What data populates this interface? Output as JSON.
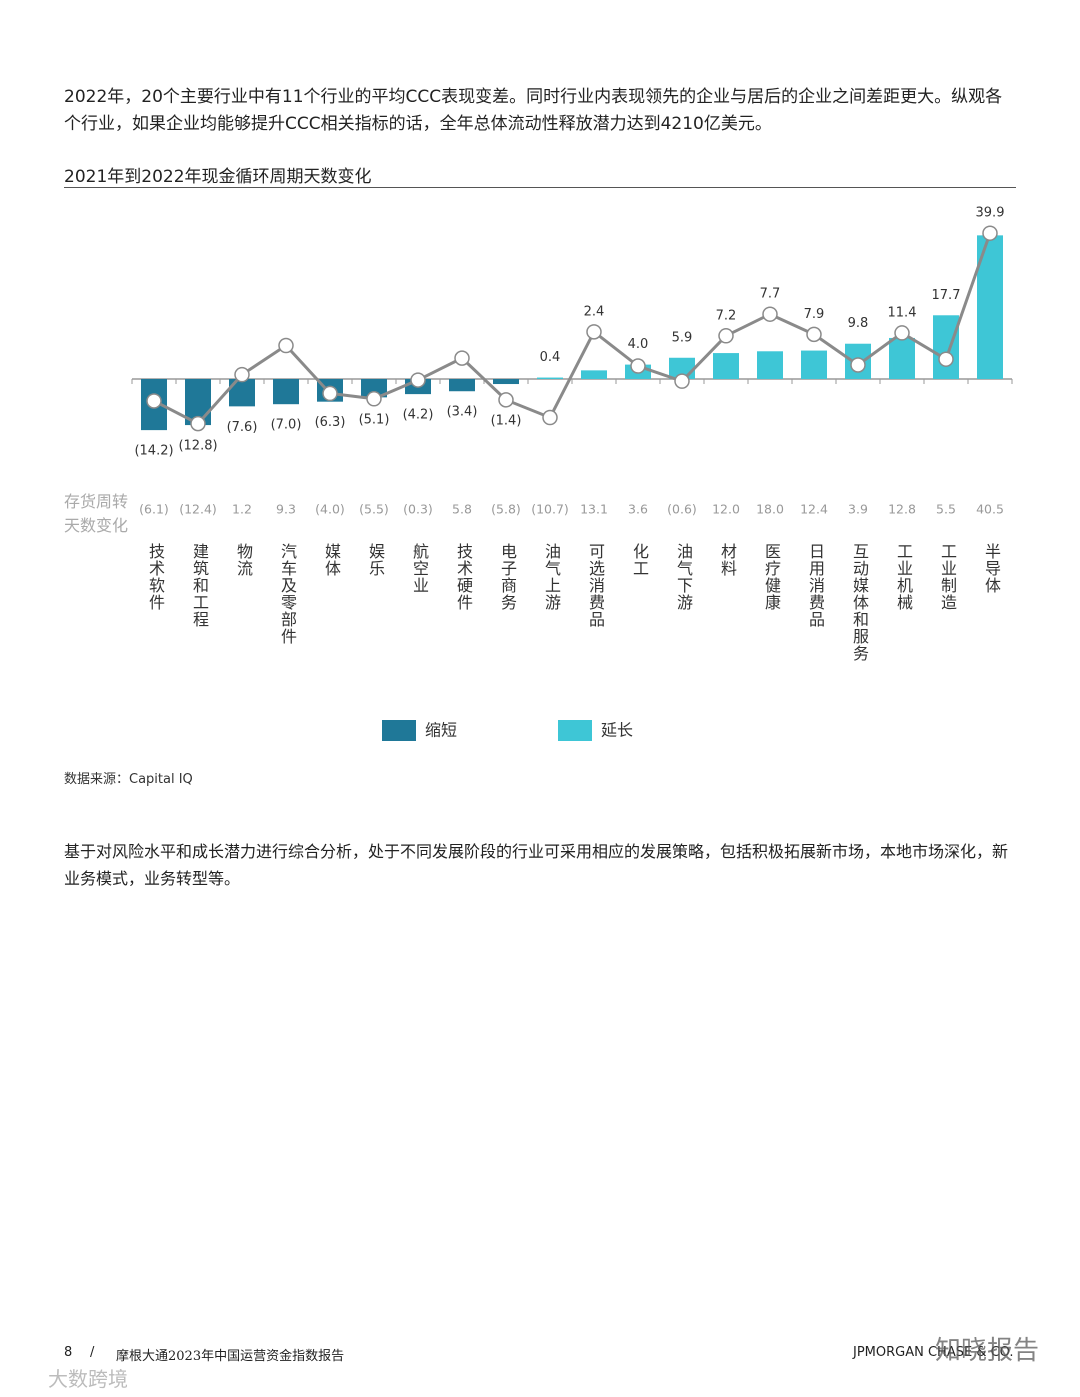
{
  "body": {
    "paragraph1": "2022年，20个主要行业中有11个行业的平均CCC表现变差。同时行业内表现领先的企业与居后的企业之间差距更大。纵观各个行业，如果企业均能够提升CCC相关指标的话，全年总体流动性释放潜力达到4210亿美元。",
    "source": "数据来源：Capital IQ",
    "paragraph2": "基于对风险水平和成长潜力进行综合分析，处于不同发展阶段的行业可采用相应的发展策略，包括积极拓展新市场，本地市场深化，新业务模式，业务转型等。"
  },
  "chart_data": {
    "type": "bar",
    "title": "2021年到2022年现金循环周期天数变化",
    "categories": [
      "技术软件",
      "建筑和工程",
      "物流",
      "汽车及零部件",
      "媒体",
      "娱乐",
      "航空业",
      "技术硬件",
      "电子商务",
      "油气上游",
      "可选消费品",
      "化工",
      "油气下游",
      "材料",
      "医疗健康",
      "日用消费品",
      "互动媒体和服务",
      "工业机械",
      "工业制造",
      "半导体"
    ],
    "ylim": [
      -15,
      45
    ],
    "series": [
      {
        "name": "缩短",
        "color": "#1f7898",
        "values": [
          -14.2,
          -12.8,
          -7.6,
          -7.0,
          -6.3,
          -5.1,
          -4.2,
          -3.4,
          -1.4,
          null,
          null,
          null,
          null,
          null,
          null,
          null,
          null,
          null,
          null,
          null
        ],
        "value_labels": [
          "(14.2)",
          "(12.8)",
          "(7.6)",
          "(7.0)",
          "(6.3)",
          "(5.1)",
          "(4.2)",
          "(3.4)",
          "(1.4)",
          null,
          null,
          null,
          null,
          null,
          null,
          null,
          null,
          null,
          null,
          null
        ]
      },
      {
        "name": "延长",
        "color": "#3ec6d6",
        "values": [
          null,
          null,
          null,
          null,
          null,
          null,
          null,
          null,
          null,
          0.4,
          2.4,
          4.0,
          5.9,
          7.2,
          7.7,
          7.9,
          9.8,
          11.4,
          17.7,
          39.9
        ],
        "value_labels": [
          null,
          null,
          null,
          null,
          null,
          null,
          null,
          null,
          null,
          "0.4",
          "2.4",
          "4.0",
          "5.9",
          "7.2",
          "7.7",
          "7.9",
          "9.8",
          "11.4",
          "17.7",
          "39.9"
        ]
      },
      {
        "name": "存货周转天数变化",
        "type": "line",
        "color": "#8a8a8a",
        "values": [
          -6.1,
          -12.4,
          1.2,
          9.3,
          -4.0,
          -5.5,
          -0.3,
          5.8,
          -5.8,
          -10.7,
          13.1,
          3.6,
          -0.6,
          12.0,
          18.0,
          12.4,
          3.9,
          12.8,
          5.5,
          40.5
        ],
        "value_labels": [
          "(6.1)",
          "(12.4)",
          "1.2",
          "9.3",
          "(4.0)",
          "(5.5)",
          "(0.3)",
          "5.8",
          "(5.8)",
          "(10.7)",
          "13.1",
          "3.6",
          "(0.6)",
          "12.0",
          "18.0",
          "12.4",
          "3.9",
          "12.8",
          "5.5",
          "40.5"
        ]
      }
    ]
  },
  "footer": {
    "page": "8",
    "separator": "/",
    "report": "摩根大通2023年中国运营资金指数报告",
    "brand": "JPMORGAN CHASE & CO."
  },
  "watermarks": [
    "知晓报告",
    "大数跨境"
  ]
}
